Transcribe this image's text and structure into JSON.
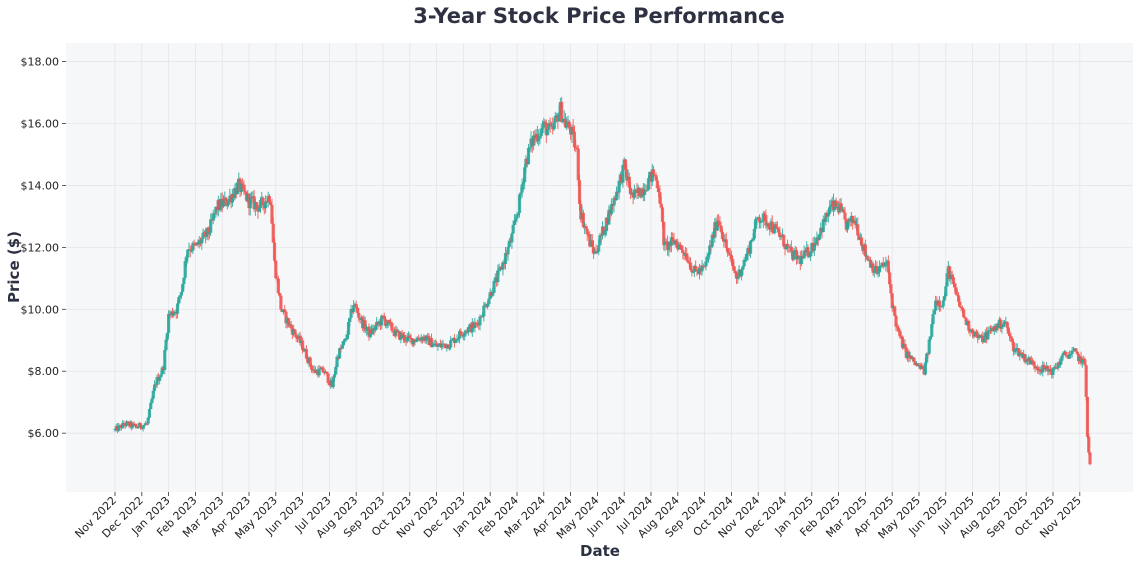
{
  "chart_data": {
    "type": "candlestick",
    "title": "3-Year Stock Price Performance",
    "xlabel": "Date",
    "ylabel": "Price ($)",
    "ylim": [
      4.1,
      18.6
    ],
    "y_ticks": [
      6,
      8,
      10,
      12,
      14,
      16,
      18
    ],
    "y_tick_labels": [
      "$6.00",
      "$8.00",
      "$10.00",
      "$12.00",
      "$14.00",
      "$16.00",
      "$18.00"
    ],
    "x_tick_labels": [
      "Nov 2022",
      "Dec 2022",
      "Jan 2023",
      "Feb 2023",
      "Mar 2023",
      "Apr 2023",
      "May 2023",
      "Jun 2023",
      "Jul 2023",
      "Aug 2023",
      "Sep 2023",
      "Oct 2023",
      "Nov 2023",
      "Dec 2023",
      "Jan 2024",
      "Feb 2024",
      "Mar 2024",
      "Apr 2024",
      "May 2024",
      "Jun 2024",
      "Jul 2024",
      "Aug 2024",
      "Sep 2024",
      "Oct 2024",
      "Nov 2024",
      "Dec 2024",
      "Jan 2025",
      "Feb 2025",
      "Mar 2025",
      "Apr 2025",
      "May 2025",
      "Jun 2025",
      "Jul 2025",
      "Aug 2025",
      "Sep 2025",
      "Oct 2025",
      "Nov 2025"
    ],
    "grid": true,
    "colors": {
      "up": "#26a69a",
      "down": "#ef5350",
      "background": "#f6f7f9",
      "grid": "#e6e6ea",
      "text": "#2d3142"
    },
    "price_path_approx": [
      [
        0,
        6.1
      ],
      [
        0.4,
        6.3
      ],
      [
        0.8,
        6.2
      ],
      [
        1.2,
        6.3
      ],
      [
        1.5,
        7.6
      ],
      [
        1.8,
        8.1
      ],
      [
        2.0,
        9.8
      ],
      [
        2.3,
        10.0
      ],
      [
        2.5,
        10.7
      ],
      [
        2.7,
        12.0
      ],
      [
        3.0,
        12.0
      ],
      [
        3.5,
        12.5
      ],
      [
        3.8,
        13.3
      ],
      [
        4.2,
        13.5
      ],
      [
        4.6,
        14.0
      ],
      [
        5.0,
        13.5
      ],
      [
        5.4,
        13.3
      ],
      [
        5.8,
        13.7
      ],
      [
        5.95,
        11.5
      ],
      [
        6.2,
        10.0
      ],
      [
        6.5,
        9.5
      ],
      [
        7.0,
        8.8
      ],
      [
        7.4,
        8.0
      ],
      [
        7.8,
        8.0
      ],
      [
        8.1,
        7.5
      ],
      [
        8.3,
        8.5
      ],
      [
        8.6,
        9.0
      ],
      [
        8.9,
        10.2
      ],
      [
        9.2,
        9.6
      ],
      [
        9.5,
        9.2
      ],
      [
        10.0,
        9.7
      ],
      [
        10.5,
        9.2
      ],
      [
        11.0,
        9.0
      ],
      [
        11.5,
        9.1
      ],
      [
        12.0,
        8.8
      ],
      [
        12.5,
        8.9
      ],
      [
        13.0,
        9.3
      ],
      [
        13.5,
        9.5
      ],
      [
        14.0,
        10.5
      ],
      [
        14.4,
        11.3
      ],
      [
        14.8,
        12.3
      ],
      [
        15.1,
        13.5
      ],
      [
        15.3,
        14.7
      ],
      [
        15.6,
        15.5
      ],
      [
        16.0,
        15.9
      ],
      [
        16.3,
        15.7
      ],
      [
        16.6,
        16.5
      ],
      [
        16.8,
        16.0
      ],
      [
        17.0,
        15.8
      ],
      [
        17.25,
        15.0
      ],
      [
        17.35,
        13.2
      ],
      [
        17.7,
        12.2
      ],
      [
        17.9,
        11.8
      ],
      [
        18.2,
        12.5
      ],
      [
        18.6,
        13.5
      ],
      [
        19.0,
        14.6
      ],
      [
        19.3,
        13.6
      ],
      [
        19.7,
        13.9
      ],
      [
        20.1,
        14.4
      ],
      [
        20.3,
        13.9
      ],
      [
        20.5,
        12.0
      ],
      [
        20.9,
        12.2
      ],
      [
        21.3,
        11.8
      ],
      [
        21.6,
        11.2
      ],
      [
        22.0,
        11.3
      ],
      [
        22.5,
        13.0
      ],
      [
        22.8,
        12.0
      ],
      [
        23.2,
        11.0
      ],
      [
        23.6,
        11.8
      ],
      [
        24.0,
        13.0
      ],
      [
        24.4,
        12.8
      ],
      [
        24.8,
        12.4
      ],
      [
        25.2,
        11.8
      ],
      [
        25.6,
        11.6
      ],
      [
        26.0,
        12.0
      ],
      [
        26.4,
        12.7
      ],
      [
        26.7,
        13.3
      ],
      [
        27.0,
        13.3
      ],
      [
        27.3,
        12.7
      ],
      [
        27.6,
        12.9
      ],
      [
        28.0,
        11.8
      ],
      [
        28.4,
        11.2
      ],
      [
        28.8,
        11.5
      ],
      [
        29.0,
        10.2
      ],
      [
        29.2,
        9.3
      ],
      [
        29.5,
        8.6
      ],
      [
        29.9,
        8.2
      ],
      [
        30.2,
        8.0
      ],
      [
        30.4,
        9.0
      ],
      [
        30.6,
        10.3
      ],
      [
        30.9,
        10.2
      ],
      [
        31.1,
        11.3
      ],
      [
        31.4,
        10.4
      ],
      [
        31.8,
        9.5
      ],
      [
        32.3,
        9.0
      ],
      [
        32.8,
        9.4
      ],
      [
        33.2,
        9.6
      ],
      [
        33.5,
        8.8
      ],
      [
        34.0,
        8.4
      ],
      [
        34.5,
        8.1
      ],
      [
        35.0,
        8.0
      ],
      [
        35.4,
        8.5
      ],
      [
        35.8,
        8.6
      ],
      [
        36.2,
        8.2
      ],
      [
        36.3,
        5.6
      ],
      [
        36.4,
        4.8
      ]
    ]
  }
}
